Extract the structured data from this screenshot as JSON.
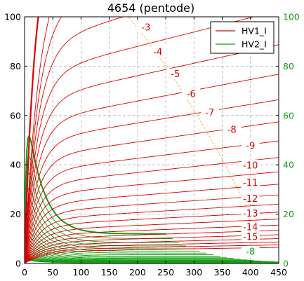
{
  "chart_data": {
    "type": "line",
    "title": "4654  (pentode)",
    "xlim": [
      0,
      450
    ],
    "ylim_left": [
      0,
      100
    ],
    "ylim_right": [
      0,
      100
    ],
    "xticks": [
      "0",
      "50",
      "100",
      "150",
      "200",
      "250",
      "300",
      "350",
      "400",
      "450"
    ],
    "yticks_left": [
      "0",
      "20",
      "40",
      "60",
      "80",
      "100"
    ],
    "yticks_right": [
      "0",
      "20",
      "40",
      "60",
      "80",
      "100"
    ],
    "grid": true,
    "legend_position": "top-right",
    "colors": {
      "hv1": "#dd0000",
      "hv2": "#11a011",
      "knee": "#f0b030",
      "right_axis": "#11a011"
    },
    "series": [
      {
        "name": "HV1_I",
        "color": "#dd0000",
        "curve_count": 23
      },
      {
        "name": "HV2_I",
        "color": "#11a011",
        "curve_count": 23
      }
    ],
    "curve_labels": [
      {
        "text": "-3",
        "x": 215,
        "y": 95.5,
        "color": "#dd0000"
      },
      {
        "text": "-4",
        "x": 236,
        "y": 85.5,
        "color": "#dd0000"
      },
      {
        "text": "-5",
        "x": 267,
        "y": 76.5,
        "color": "#dd0000"
      },
      {
        "text": "-6",
        "x": 295,
        "y": 68.5,
        "color": "#dd0000"
      },
      {
        "text": "-7",
        "x": 328,
        "y": 61.0,
        "color": "#dd0000"
      },
      {
        "text": "-8",
        "x": 367,
        "y": 54.0,
        "color": "#dd0000"
      },
      {
        "text": "-9",
        "x": 400,
        "y": 47.5,
        "color": "#dd0000"
      },
      {
        "text": "-10",
        "x": 400,
        "y": 39.5,
        "color": "#dd0000"
      },
      {
        "text": "-11",
        "x": 400,
        "y": 32.5,
        "color": "#dd0000"
      },
      {
        "text": "-12",
        "x": 400,
        "y": 26.0,
        "color": "#dd0000"
      },
      {
        "text": "-13",
        "x": 400,
        "y": 20.0,
        "color": "#dd0000"
      },
      {
        "text": "-14",
        "x": 400,
        "y": 14.5,
        "color": "#dd0000"
      },
      {
        "text": "-15",
        "x": 400,
        "y": 10.5,
        "color": "#dd0000"
      },
      {
        "text": "-8",
        "x": 400,
        "y": 4.5,
        "color": "#11a011"
      }
    ]
  }
}
